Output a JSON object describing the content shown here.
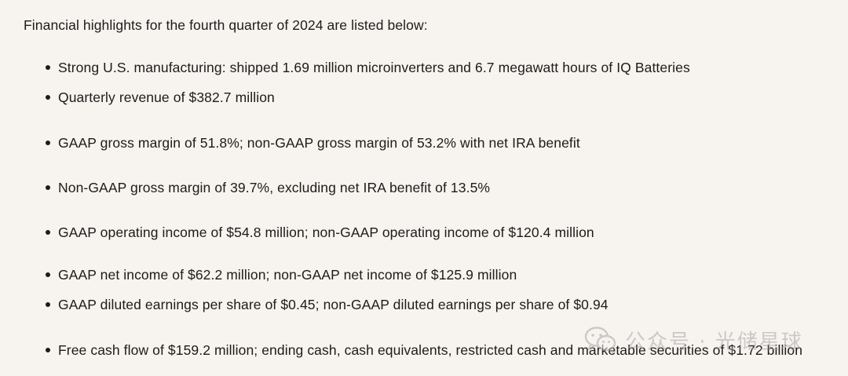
{
  "document": {
    "intro": "Financial highlights for the fourth quarter of 2024 are listed below:",
    "bullets": [
      "Strong U.S. manufacturing: shipped 1.69 million microinverters and 6.7 megawatt hours of IQ Batteries",
      "Quarterly revenue of $382.7 million",
      "GAAP gross margin of 51.8%; non-GAAP gross margin of 53.2% with net IRA benefit",
      "Non-GAAP gross margin of 39.7%, excluding net IRA benefit of 13.5%",
      "GAAP operating income of $54.8 million; non-GAAP operating income of $120.4 million",
      "GAAP net income of $62.2 million; non-GAAP net income of $125.9 million",
      "GAAP diluted earnings per share of $0.45; non-GAAP diluted earnings per share of $0.94",
      "Free cash flow of $159.2 million; ending cash, cash equivalents, restricted cash and marketable securities of $1.72 billion"
    ]
  },
  "watermark": {
    "text": "公众号 · 光储星球",
    "icon": "wechat-icon",
    "color": "#a8a8a8"
  }
}
